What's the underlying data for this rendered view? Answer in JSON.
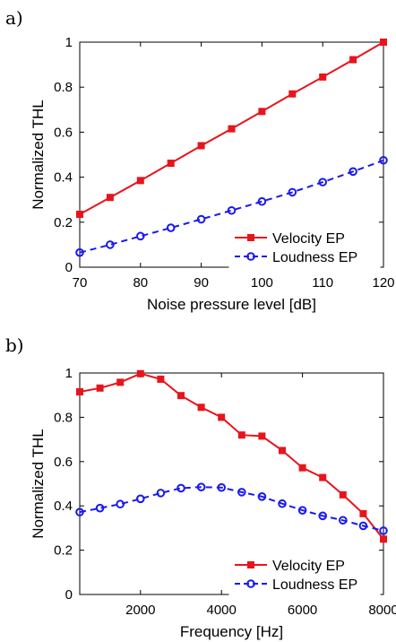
{
  "colors": {
    "velocity": "#e8141c",
    "loudness": "#1a1aee",
    "axis": "#000000"
  },
  "chart_data": [
    {
      "panel_label": "a)",
      "type": "line",
      "xlabel": "Noise pressure level [dB]",
      "ylabel": "Normalized THL",
      "xlim": [
        70,
        120
      ],
      "ylim": [
        0,
        1
      ],
      "xticks": [
        70,
        80,
        90,
        100,
        110,
        120
      ],
      "yticks": [
        0,
        0.2,
        0.4,
        0.6,
        0.8,
        1
      ],
      "ytick_labels": [
        "0",
        "0.2",
        "0.4",
        "0.6",
        "0.8",
        "1"
      ],
      "legend_position": "bottom-right",
      "grid": false,
      "series": [
        {
          "name": "Velocity EP",
          "color": "#e8141c",
          "line_style": "solid",
          "marker": "square",
          "x": [
            70,
            75,
            80,
            85,
            90,
            95,
            100,
            105,
            110,
            115,
            120
          ],
          "y": [
            0.235,
            0.31,
            0.385,
            0.462,
            0.54,
            0.615,
            0.692,
            0.77,
            0.845,
            0.922,
            1.0
          ]
        },
        {
          "name": "Loudness EP",
          "color": "#1a1aee",
          "line_style": "dashed",
          "marker": "circle",
          "x": [
            70,
            75,
            80,
            85,
            90,
            95,
            100,
            105,
            110,
            115,
            120
          ],
          "y": [
            0.065,
            0.1,
            0.138,
            0.175,
            0.213,
            0.252,
            0.292,
            0.333,
            0.378,
            0.425,
            0.475
          ]
        }
      ]
    },
    {
      "panel_label": "b)",
      "type": "line",
      "xlabel": "Frequency [Hz]",
      "ylabel": "Normalized THL",
      "xlim": [
        500,
        8000
      ],
      "ylim": [
        0,
        1
      ],
      "xticks": [
        2000,
        4000,
        6000,
        8000
      ],
      "yticks": [
        0,
        0.2,
        0.4,
        0.6,
        0.8,
        1
      ],
      "ytick_labels": [
        "0",
        "0.2",
        "0.4",
        "0.6",
        "0.8",
        "1"
      ],
      "legend_position": "bottom-right",
      "grid": false,
      "series": [
        {
          "name": "Velocity EP",
          "color": "#e8141c",
          "line_style": "solid",
          "marker": "square",
          "x": [
            500,
            1000,
            1500,
            2000,
            2500,
            3000,
            3500,
            4000,
            4500,
            5000,
            5500,
            6000,
            6500,
            7000,
            7500,
            8000
          ],
          "y": [
            0.915,
            0.932,
            0.958,
            0.997,
            0.972,
            0.898,
            0.845,
            0.8,
            0.72,
            0.715,
            0.65,
            0.572,
            0.528,
            0.45,
            0.365,
            0.25
          ]
        },
        {
          "name": "Loudness EP",
          "color": "#1a1aee",
          "line_style": "dashed",
          "marker": "circle",
          "x": [
            500,
            1000,
            1500,
            2000,
            2500,
            3000,
            3500,
            4000,
            4500,
            5000,
            5500,
            6000,
            6500,
            7000,
            7500,
            8000
          ],
          "y": [
            0.372,
            0.39,
            0.408,
            0.432,
            0.458,
            0.48,
            0.485,
            0.483,
            0.462,
            0.442,
            0.41,
            0.38,
            0.355,
            0.335,
            0.31,
            0.288
          ]
        }
      ]
    }
  ]
}
